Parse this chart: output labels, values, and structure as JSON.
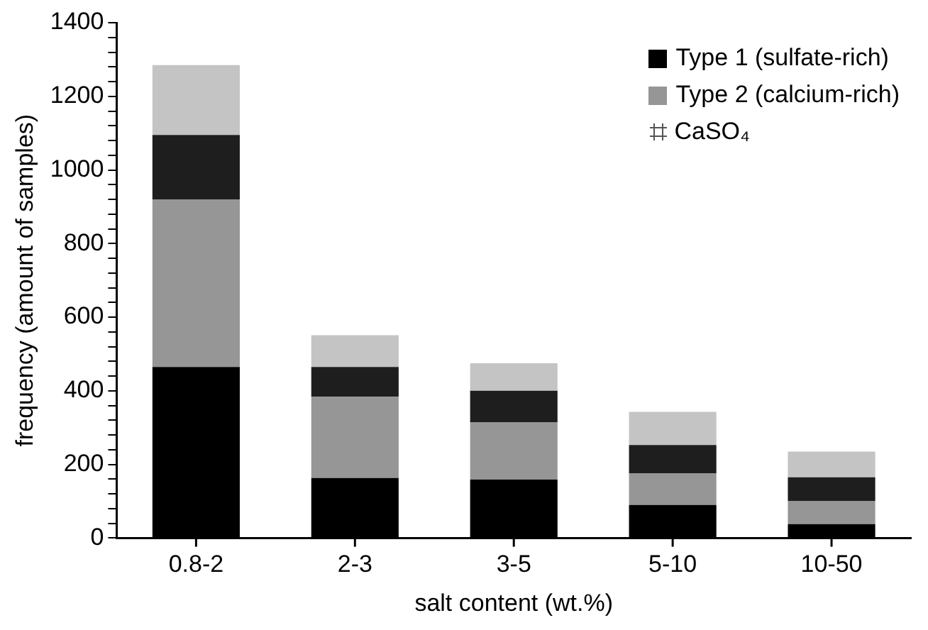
{
  "chart_data": {
    "type": "bar",
    "stacked": true,
    "xlabel": "salt content (wt.%)",
    "ylabel": "frequency (amount of samples)",
    "categories": [
      "0.8-2",
      "2-3",
      "3-5",
      "5-10",
      "10-50"
    ],
    "series": [
      {
        "name": "Type 1 (sulfate-rich)",
        "color": "#000000",
        "values": [
          465,
          163,
          159,
          90,
          38
        ]
      },
      {
        "name": "Type 2 (calcium-rich)",
        "color": "#969696",
        "values": [
          455,
          221,
          155,
          86,
          62
        ]
      },
      {
        "color": "#1e1e1e",
        "values": [
          175,
          81,
          86,
          77,
          65
        ]
      },
      {
        "color": "#c4c4c4",
        "values": [
          190,
          86,
          75,
          90,
          70
        ]
      }
    ],
    "ylim": [
      0,
      1400
    ],
    "yticks": [
      0,
      {
        "value": 40,
        "label": null
      },
      {
        "value": 80,
        "label": null
      },
      {
        "value": 120,
        "label": null
      },
      {
        "value": 160,
        "label": null
      },
      200,
      {
        "value": 240,
        "label": null
      },
      {
        "value": 280,
        "label": null
      },
      {
        "value": 320,
        "label": null
      },
      {
        "value": 360,
        "label": null
      },
      400,
      {
        "value": 440,
        "label": null
      },
      {
        "value": 480,
        "label": null
      },
      {
        "value": 520,
        "label": null
      },
      {
        "value": 560,
        "label": null
      },
      600,
      {
        "value": 640,
        "label": null
      },
      {
        "value": 680,
        "label": null
      },
      {
        "value": 720,
        "label": null
      },
      {
        "value": 760,
        "label": null
      },
      800,
      {
        "value": 840,
        "label": null
      },
      {
        "value": 880,
        "label": null
      },
      {
        "value": 920,
        "label": null
      },
      {
        "value": 960,
        "label": null
      },
      1000,
      {
        "value": 1040,
        "label": null
      },
      {
        "value": 1080,
        "label": null
      },
      {
        "value": 1120,
        "label": null
      },
      {
        "value": 1160,
        "label": null
      },
      1200,
      {
        "value": 1240,
        "label": null
      },
      {
        "value": 1280,
        "label": null
      },
      {
        "value": 1320,
        "label": null
      },
      {
        "value": 1360,
        "label": null
      },
      1400
    ],
    "grid": false,
    "legend": "top right",
    "annotations": [
      "CaSO₄"
    ]
  }
}
